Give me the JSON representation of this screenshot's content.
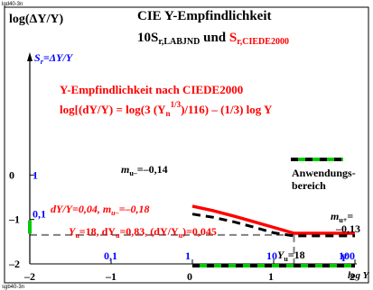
{
  "header_code": "lgd40-3n",
  "footer_code": "sgb40-3n",
  "chart_data": {
    "type": "line",
    "title_line1": "CIE Y-Empfindlichkeit",
    "title_line2_prefix": "10S",
    "title_line2_sub1": "r,LABJND",
    "title_line2_mid": " und ",
    "title_line2_red": "S",
    "title_line2_sub2": "r,CIEDE2000",
    "ylabel": "log(ΔY/Y)",
    "xlabel": "log Y",
    "ylabel_inner": "S",
    "ylabel_inner_sub": "r",
    "ylabel_inner_rest": "=ΔY/Y",
    "subtitle": "Y-Empfindlichkeit nach CIEDE2000",
    "formula": "log[(dY/Y) = log(3 (Y",
    "formula_sub": "n",
    "formula_sup": "1/3",
    "formula_end": ")/116) – (1/3) log Y",
    "xlim": [
      -2,
      2
    ],
    "ylim": [
      -2,
      1
    ],
    "x_ticks": [
      "–2",
      "–1",
      "0",
      "1",
      "2"
    ],
    "y_ticks": [
      "–2",
      "–1",
      "0"
    ],
    "y_ticks_blue": [
      "0,1",
      "1"
    ],
    "x_ticks_blue": [
      "0,1",
      "1",
      "10",
      "100"
    ],
    "x_blue_suffix": "Y",
    "m_minus_label": "m",
    "m_minus_sub": "u–",
    "m_minus_value": "=–0,14",
    "m_plus_label": "m",
    "m_plus_sub": "u+",
    "m_plus_value": "=",
    "m_plus_value2": "–0,13",
    "annotation_red1": "dY/Y=0,04, m",
    "annotation_red1_sub": "u–",
    "annotation_red1_end": "=–0,18",
    "annotation_red2": "Y",
    "annotation_red2_sub": "u",
    "annotation_red2_end": "=18, dY",
    "annotation_red2_sub2": "u",
    "annotation_red2_end2": "=0,83, (dY/Y",
    "annotation_red2_sub3": "u",
    "annotation_red2_end3": ")=0,045",
    "yu_label": "Y",
    "yu_sub": "u",
    "yu_value": "=18",
    "legend_label1": "Anwendungs-",
    "legend_label2": "bereich",
    "colors": {
      "red": "#ff0000",
      "blue": "#0000ff",
      "green": "#00cc00",
      "black": "#000000",
      "gray": "#808080"
    },
    "series": [
      {
        "name": "",
        "color": "#ff0000",
        "dash": false,
        "x": [
          0.0,
          0.25,
          0.5,
          0.75,
          1.0,
          1.25,
          1.5,
          2.0
        ],
        "y": [
          -0.7,
          -0.8,
          -0.92,
          -1.05,
          -1.18,
          -1.31,
          -1.31,
          -1.31
        ]
      },
      {
        "name": "",
        "color": "#000000",
        "dash": true,
        "x": [
          0.0,
          0.25,
          0.5,
          0.75,
          1.0,
          1.25,
          1.5,
          2.0
        ],
        "y": [
          -0.88,
          -0.95,
          -1.05,
          -1.17,
          -1.3,
          -1.37,
          -1.37,
          -1.37
        ]
      }
    ]
  }
}
